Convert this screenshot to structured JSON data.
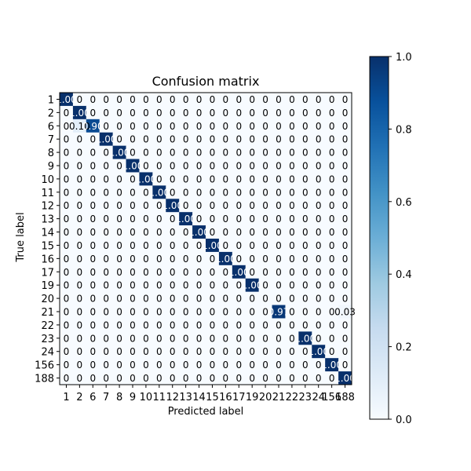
{
  "chart_data": {
    "type": "heatmap",
    "title": "Confusion matrix",
    "xlabel": "Predicted label",
    "ylabel": "True label",
    "labels": [
      "1",
      "2",
      "6",
      "7",
      "8",
      "9",
      "10",
      "11",
      "12",
      "13",
      "14",
      "15",
      "16",
      "17",
      "19",
      "20",
      "21",
      "22",
      "23",
      "24",
      "156",
      "188"
    ],
    "matrix": [
      [
        "1.00",
        "0",
        "0",
        "0",
        "0",
        "0",
        "0",
        "0",
        "0",
        "0",
        "0",
        "0",
        "0",
        "0",
        "0",
        "0",
        "0",
        "0",
        "0",
        "0",
        "0",
        "0"
      ],
      [
        "0",
        "1.00",
        "0",
        "0",
        "0",
        "0",
        "0",
        "0",
        "0",
        "0",
        "0",
        "0",
        "0",
        "0",
        "0",
        "0",
        "0",
        "0",
        "0",
        "0",
        "0",
        "0"
      ],
      [
        "0",
        "0.10",
        "0.90",
        "0",
        "0",
        "0",
        "0",
        "0",
        "0",
        "0",
        "0",
        "0",
        "0",
        "0",
        "0",
        "0",
        "0",
        "0",
        "0",
        "0",
        "0",
        "0"
      ],
      [
        "0",
        "0",
        "0",
        "1.00",
        "0",
        "0",
        "0",
        "0",
        "0",
        "0",
        "0",
        "0",
        "0",
        "0",
        "0",
        "0",
        "0",
        "0",
        "0",
        "0",
        "0",
        "0"
      ],
      [
        "0",
        "0",
        "0",
        "0",
        "1.00",
        "0",
        "0",
        "0",
        "0",
        "0",
        "0",
        "0",
        "0",
        "0",
        "0",
        "0",
        "0",
        "0",
        "0",
        "0",
        "0",
        "0"
      ],
      [
        "0",
        "0",
        "0",
        "0",
        "0",
        "1.00",
        "0",
        "0",
        "0",
        "0",
        "0",
        "0",
        "0",
        "0",
        "0",
        "0",
        "0",
        "0",
        "0",
        "0",
        "0",
        "0"
      ],
      [
        "0",
        "0",
        "0",
        "0",
        "0",
        "0",
        "1.00",
        "0",
        "0",
        "0",
        "0",
        "0",
        "0",
        "0",
        "0",
        "0",
        "0",
        "0",
        "0",
        "0",
        "0",
        "0"
      ],
      [
        "0",
        "0",
        "0",
        "0",
        "0",
        "0",
        "0",
        "1.00",
        "0",
        "0",
        "0",
        "0",
        "0",
        "0",
        "0",
        "0",
        "0",
        "0",
        "0",
        "0",
        "0",
        "0"
      ],
      [
        "0",
        "0",
        "0",
        "0",
        "0",
        "0",
        "0",
        "0",
        "1.00",
        "0",
        "0",
        "0",
        "0",
        "0",
        "0",
        "0",
        "0",
        "0",
        "0",
        "0",
        "0",
        "0"
      ],
      [
        "0",
        "0",
        "0",
        "0",
        "0",
        "0",
        "0",
        "0",
        "0",
        "1.00",
        "0",
        "0",
        "0",
        "0",
        "0",
        "0",
        "0",
        "0",
        "0",
        "0",
        "0",
        "0"
      ],
      [
        "0",
        "0",
        "0",
        "0",
        "0",
        "0",
        "0",
        "0",
        "0",
        "0",
        "1.00",
        "0",
        "0",
        "0",
        "0",
        "0",
        "0",
        "0",
        "0",
        "0",
        "0",
        "0"
      ],
      [
        "0",
        "0",
        "0",
        "0",
        "0",
        "0",
        "0",
        "0",
        "0",
        "0",
        "0",
        "1.00",
        "0",
        "0",
        "0",
        "0",
        "0",
        "0",
        "0",
        "0",
        "0",
        "0"
      ],
      [
        "0",
        "0",
        "0",
        "0",
        "0",
        "0",
        "0",
        "0",
        "0",
        "0",
        "0",
        "0",
        "1.00",
        "0",
        "0",
        "0",
        "0",
        "0",
        "0",
        "0",
        "0",
        "0"
      ],
      [
        "0",
        "0",
        "0",
        "0",
        "0",
        "0",
        "0",
        "0",
        "0",
        "0",
        "0",
        "0",
        "0",
        "1.00",
        "0",
        "0",
        "0",
        "0",
        "0",
        "0",
        "0",
        "0"
      ],
      [
        "0",
        "0",
        "0",
        "0",
        "0",
        "0",
        "0",
        "0",
        "0",
        "0",
        "0",
        "0",
        "0",
        "0",
        "1.00",
        "0",
        "0",
        "0",
        "0",
        "0",
        "0",
        "0"
      ],
      [
        "0",
        "0",
        "0",
        "0",
        "0",
        "0",
        "0",
        "0",
        "0",
        "0",
        "0",
        "0",
        "0",
        "0",
        "0",
        "0",
        "0",
        "0",
        "0",
        "0",
        "0",
        "0"
      ],
      [
        "0",
        "0",
        "0",
        "0",
        "0",
        "0",
        "0",
        "0",
        "0",
        "0",
        "0",
        "0",
        "0",
        "0",
        "0",
        "0",
        "0.97",
        "0",
        "0",
        "0",
        "0",
        "0.03"
      ],
      [
        "0",
        "0",
        "0",
        "0",
        "0",
        "0",
        "0",
        "0",
        "0",
        "0",
        "0",
        "0",
        "0",
        "0",
        "0",
        "0",
        "0",
        "0",
        "0",
        "0",
        "0",
        "0"
      ],
      [
        "0",
        "0",
        "0",
        "0",
        "0",
        "0",
        "0",
        "0",
        "0",
        "0",
        "0",
        "0",
        "0",
        "0",
        "0",
        "0",
        "0",
        "0",
        "1.00",
        "0",
        "0",
        "0"
      ],
      [
        "0",
        "0",
        "0",
        "0",
        "0",
        "0",
        "0",
        "0",
        "0",
        "0",
        "0",
        "0",
        "0",
        "0",
        "0",
        "0",
        "0",
        "0",
        "0",
        "1.00",
        "0",
        "0"
      ],
      [
        "0",
        "0",
        "0",
        "0",
        "0",
        "0",
        "0",
        "0",
        "0",
        "0",
        "0",
        "0",
        "0",
        "0",
        "0",
        "0",
        "0",
        "0",
        "0",
        "0",
        "1.00",
        "0"
      ],
      [
        "0",
        "0",
        "0",
        "0",
        "0",
        "0",
        "0",
        "0",
        "0",
        "0",
        "0",
        "0",
        "0",
        "0",
        "0",
        "0",
        "0",
        "0",
        "0",
        "0",
        "0",
        "1.00"
      ]
    ],
    "colorbar": {
      "range": [
        0,
        1
      ],
      "ticks": [
        "0.0",
        "0.2",
        "0.4",
        "0.6",
        "0.8",
        "1.0"
      ],
      "colormap": "Blues",
      "color_low": "#f7fbff",
      "color_high": "#08306b"
    },
    "grid": false,
    "legend": "none"
  }
}
